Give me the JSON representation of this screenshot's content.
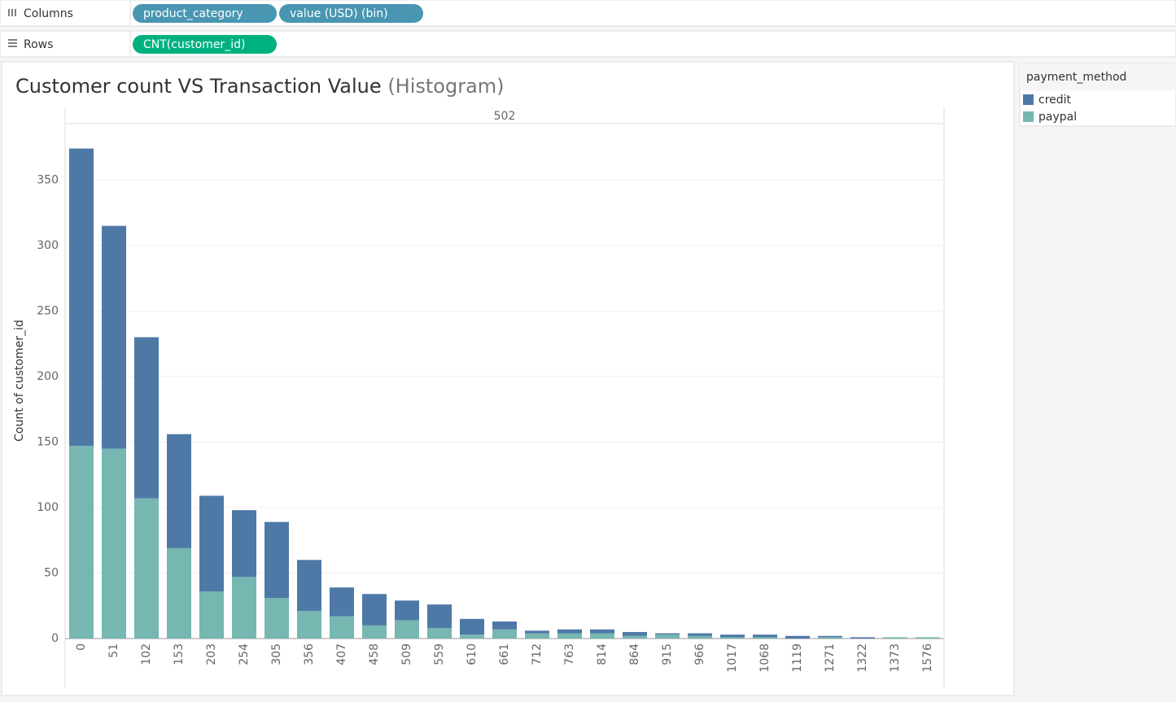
{
  "shelves": {
    "columns": {
      "label": "Columns",
      "pills": [
        "product_category",
        "value (USD) (bin)"
      ]
    },
    "rows": {
      "label": "Rows",
      "pills": [
        "CNT(customer_id)"
      ]
    }
  },
  "chart_data": {
    "type": "stacked_bar",
    "title": "Customer count VS Transaction Value",
    "subtitle": "(Histogram)",
    "header": "502",
    "y_label": "Count of customer_id",
    "categories": [
      "0",
      "51",
      "102",
      "153",
      "203",
      "254",
      "305",
      "356",
      "407",
      "458",
      "509",
      "559",
      "610",
      "661",
      "712",
      "763",
      "814",
      "864",
      "915",
      "966",
      "1017",
      "1068",
      "1119",
      "1271",
      "1322",
      "1373",
      "1576"
    ],
    "series": [
      {
        "name": "credit",
        "color": "#4e79a7",
        "values": [
          227,
          170,
          123,
          87,
          73,
          51,
          58,
          39,
          22,
          24,
          15,
          18,
          12,
          6,
          2,
          3,
          3,
          3,
          1,
          2,
          2,
          2,
          2,
          1,
          1,
          0,
          0
        ]
      },
      {
        "name": "paypal",
        "color": "#76b7b2",
        "values": [
          147,
          145,
          107,
          69,
          36,
          47,
          31,
          21,
          17,
          10,
          14,
          8,
          3,
          7,
          4,
          4,
          4,
          2,
          3,
          2,
          1,
          1,
          0,
          1,
          0,
          1,
          1
        ]
      }
    ],
    "ylim": [
      0,
      393
    ],
    "yticks": [
      0,
      50,
      100,
      150,
      200,
      250,
      300,
      350
    ],
    "grid": true,
    "legend_title": "payment_method",
    "legend": "right"
  }
}
